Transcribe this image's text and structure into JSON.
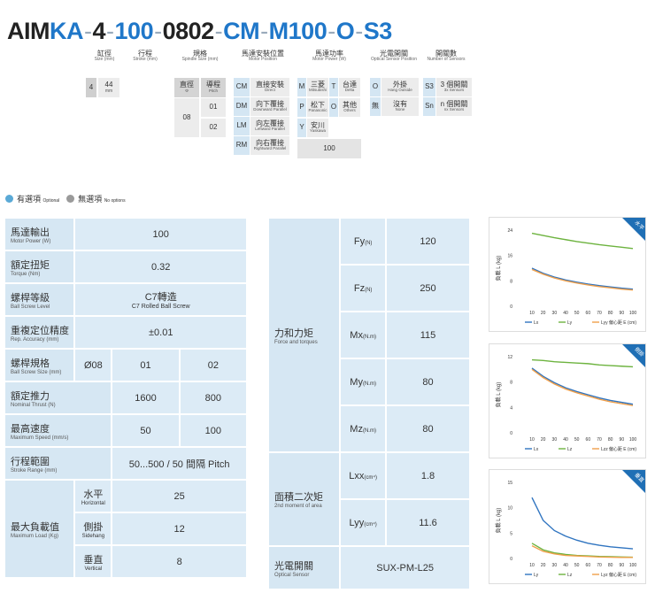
{
  "model_code": {
    "parts": [
      {
        "text": "AIM",
        "color": "black"
      },
      {
        "text": "KA",
        "color": "blue"
      },
      {
        "text": "-",
        "color": "dash"
      },
      {
        "text": "4",
        "color": "black"
      },
      {
        "text": "-",
        "color": "dash"
      },
      {
        "text": "100",
        "color": "blue"
      },
      {
        "text": "-",
        "color": "dash"
      },
      {
        "text": "0802",
        "color": "black"
      },
      {
        "text": "-",
        "color": "dash"
      },
      {
        "text": "CM",
        "color": "blue"
      },
      {
        "text": "-",
        "color": "dash"
      },
      {
        "text": "M100",
        "color": "blue"
      },
      {
        "text": "-",
        "color": "dash"
      },
      {
        "text": "O",
        "color": "blue"
      },
      {
        "text": "-",
        "color": "dash"
      },
      {
        "text": "S3",
        "color": "blue"
      }
    ]
  },
  "captions": {
    "bore": {
      "zh": "缸徑",
      "en": "Size (mm)"
    },
    "stroke": {
      "zh": "行程",
      "en": "Stroke (mm)"
    },
    "spindle": {
      "zh": "規格",
      "en": "Spindle Size (mm)"
    },
    "motor_pos": {
      "zh": "馬達安裝位置",
      "en": "Motor Position"
    },
    "motor_power": {
      "zh": "馬達功率",
      "en": "Motor Power (W)"
    },
    "sensor_pos": {
      "zh": "光電開關",
      "en": "Optical Sensor Position"
    },
    "sensors": {
      "zh": "開關數",
      "en": "Number of Sensors"
    }
  },
  "options": {
    "size": {
      "code": "4",
      "value": "44",
      "unit": "mm"
    },
    "spindle_head": {
      "dia_zh": "直徑",
      "dia_en": "Φ",
      "pitch_zh": "導程",
      "pitch_en": "Pitch"
    },
    "spindle_dia": "08",
    "spindle_pitch": [
      "01",
      "02"
    ],
    "motor_pos": [
      {
        "code": "CM",
        "zh": "直接安裝",
        "en": "Direct"
      },
      {
        "code": "DM",
        "zh": "向下覆接",
        "en": "Downward Parallel"
      },
      {
        "code": "LM",
        "zh": "向左覆接",
        "en": "Leftward Parallel"
      },
      {
        "code": "RM",
        "zh": "向右覆接",
        "en": "Rightward Parallel"
      }
    ],
    "motor_brand": [
      {
        "code": "M",
        "zh": "三菱",
        "en": "Mitsubishi"
      },
      {
        "code": "T",
        "zh": "台達",
        "en": "Delta"
      },
      {
        "code": "P",
        "zh": "松下",
        "en": "Panasonic"
      },
      {
        "code": "O",
        "zh": "其他",
        "en": "Others"
      },
      {
        "code": "Y",
        "zh": "安川",
        "en": "Yaskawa"
      }
    ],
    "motor_power": "100",
    "sensor_pos": [
      {
        "code": "O",
        "zh": "外掛",
        "en": "Hang Outside"
      },
      {
        "code": "無",
        "zh": "沒有",
        "en": "None"
      }
    ],
    "sensors": [
      {
        "code": "S3",
        "zh": "3 個開關",
        "en": "3x Sensors"
      },
      {
        "code": "Sn",
        "zh": "n 個開關",
        "en": "nx Sensors"
      }
    ]
  },
  "legend": {
    "optional_zh": "有選項",
    "optional_en": "Optional",
    "none_zh": "無選項",
    "none_en": "No options",
    "optional_color": "#5aa9d6",
    "none_color": "#9a9a9a"
  },
  "spec_table": {
    "motor_power": {
      "zh": "馬達輸出",
      "en": "Motor Power (W)",
      "value": "100"
    },
    "torque": {
      "zh": "額定扭矩",
      "en": "Torque (Nm)",
      "value": "0.32"
    },
    "ball_screw_level": {
      "zh": "螺桿等級",
      "en": "Ball Screw Level",
      "value_zh": "C7轉造",
      "value_en": "C7 Rolled Ball Screw"
    },
    "accuracy": {
      "zh": "重複定位精度",
      "en": "Rep. Accuracy (mm)",
      "value": "±0.01"
    },
    "ball_screw_size": {
      "zh": "螺桿規格",
      "en": "Ball Screw Size (mm)",
      "dia": "Ø08",
      "v1": "01",
      "v2": "02"
    },
    "thrust": {
      "zh": "額定推力",
      "en": "Nominal Thrust (N)",
      "v1": "1600",
      "v2": "800"
    },
    "speed": {
      "zh": "最高速度",
      "en": "Maximum Speed (mm/s)",
      "v1": "50",
      "v2": "100"
    },
    "stroke": {
      "zh": "行程範圍",
      "en": "Stroke Range (mm)",
      "value": "50...500 / 50 間隔 Pitch"
    },
    "max_load": {
      "zh": "最大負載值",
      "en": "Maximum Load (Kg)",
      "rows": [
        {
          "zh": "水平",
          "en": "Horizontal",
          "value": "25"
        },
        {
          "zh": "側掛",
          "en": "Sidehang",
          "value": "12"
        },
        {
          "zh": "垂直",
          "en": "Vertical",
          "value": "8"
        }
      ]
    }
  },
  "force_table": {
    "force": {
      "zh": "力和力矩",
      "en": "Force and torques"
    },
    "rows": [
      {
        "sym": "Fy",
        "unit": "(N)",
        "value": "120"
      },
      {
        "sym": "Fz",
        "unit": "(N)",
        "value": "250"
      },
      {
        "sym": "Mx",
        "unit": "(N.m)",
        "value": "115"
      },
      {
        "sym": "My",
        "unit": "(N.m)",
        "value": "80"
      },
      {
        "sym": "Mz",
        "unit": "(N.m)",
        "value": "80"
      }
    ],
    "inertia": {
      "zh": "面積二次矩",
      "en": "2nd moment of area"
    },
    "inertia_rows": [
      {
        "sym": "Lxx",
        "unit": "(cm⁴)",
        "value": "1.8"
      },
      {
        "sym": "Lyy",
        "unit": "(cm⁴)",
        "value": "11.6"
      }
    ],
    "sensor": {
      "zh": "光電開關",
      "en": "Optical Sensor",
      "value": "SUX-PM-L25"
    }
  },
  "chart_data": [
    {
      "type": "line",
      "corner": "水平",
      "ylabel": "負載 L (kg)",
      "xlabel": "偏心距 E (cm)",
      "x": [
        10,
        20,
        30,
        40,
        50,
        60,
        70,
        80,
        90,
        100
      ],
      "yticks": [
        0,
        8,
        16,
        24
      ],
      "ylim": [
        0,
        24
      ],
      "series": [
        {
          "name": "Lx",
          "color": "#2f74c0",
          "values": [
            12,
            10.4,
            9.2,
            8.3,
            7.6,
            7.0,
            6.5,
            6.1,
            5.7,
            5.4
          ]
        },
        {
          "name": "Ly",
          "color": "#6db33f",
          "values": [
            23,
            22.3,
            21.6,
            21,
            20.4,
            19.9,
            19.4,
            19,
            18.6,
            18.2
          ]
        },
        {
          "name": "Lyy",
          "color": "#f0a04b",
          "values": [
            11.6,
            10.1,
            8.9,
            8.0,
            7.3,
            6.7,
            6.2,
            5.8,
            5.4,
            5.1
          ]
        }
      ],
      "legend_labels": [
        "Lx",
        "Ly",
        "Lyy"
      ]
    },
    {
      "type": "line",
      "corner": "側掛",
      "ylabel": "負載 L (kg)",
      "xlabel": "偏心距 E (cm)",
      "x": [
        10,
        20,
        30,
        40,
        50,
        60,
        70,
        80,
        90,
        100
      ],
      "yticks": [
        0,
        4,
        8,
        12
      ],
      "ylim": [
        0,
        12
      ],
      "series": [
        {
          "name": "Lx",
          "color": "#2f74c0",
          "values": [
            10.2,
            8.9,
            7.9,
            7.1,
            6.5,
            6.0,
            5.5,
            5.1,
            4.8,
            4.5
          ]
        },
        {
          "name": "Lz",
          "color": "#6db33f",
          "values": [
            11.5,
            11.4,
            11.2,
            11.1,
            11.0,
            10.9,
            10.7,
            10.6,
            10.5,
            10.4
          ]
        },
        {
          "name": "Lzz",
          "color": "#f0a04b",
          "values": [
            10,
            8.7,
            7.7,
            6.9,
            6.3,
            5.8,
            5.3,
            4.9,
            4.6,
            4.3
          ]
        }
      ],
      "legend_labels": [
        "Lx",
        "Lz",
        "Lzz"
      ]
    },
    {
      "type": "line",
      "corner": "垂直",
      "ylabel": "負載 L (kg)",
      "xlabel": "偏心距 E (cm)",
      "x": [
        10,
        20,
        30,
        40,
        50,
        60,
        70,
        80,
        90,
        100
      ],
      "yticks": [
        0,
        5,
        10,
        15
      ],
      "ylim": [
        0,
        15
      ],
      "series": [
        {
          "name": "Ly",
          "color": "#2f74c0",
          "values": [
            12,
            7.5,
            5.5,
            4.4,
            3.6,
            3.0,
            2.6,
            2.3,
            2.1,
            1.9
          ]
        },
        {
          "name": "Lz",
          "color": "#6db33f",
          "values": [
            3,
            1.7,
            1.1,
            0.8,
            0.6,
            0.5,
            0.4,
            0.35,
            0.3,
            0.25
          ]
        },
        {
          "name": "Lyz",
          "color": "#f0a04b",
          "values": [
            2.5,
            1.4,
            0.9,
            0.6,
            0.5,
            0.4,
            0.3,
            0.25,
            0.2,
            0.2
          ]
        }
      ],
      "legend_labels": [
        "Ly",
        "Lz",
        "Lyz"
      ]
    }
  ]
}
